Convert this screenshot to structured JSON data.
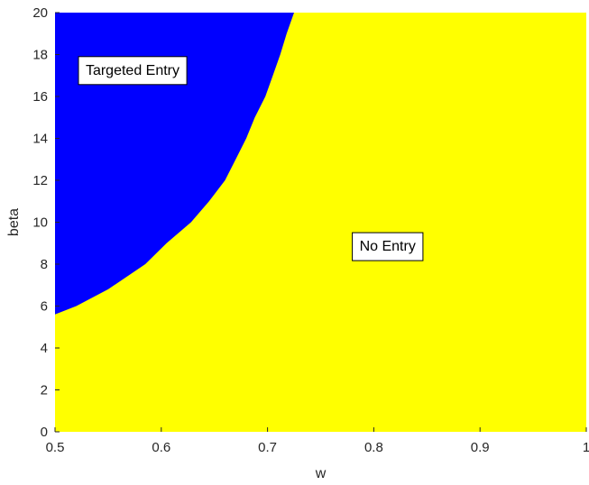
{
  "chart_data": {
    "type": "area",
    "xlabel": "w",
    "ylabel": "beta",
    "xlim": [
      0.5,
      1
    ],
    "ylim": [
      0,
      20
    ],
    "xticks": [
      0.5,
      0.6,
      0.7,
      0.8,
      0.9,
      1
    ],
    "xtick_labels": [
      "0.5",
      "0.6",
      "0.7",
      "0.8",
      "0.9",
      "1"
    ],
    "yticks": [
      0,
      2,
      4,
      6,
      8,
      10,
      12,
      14,
      16,
      18,
      20
    ],
    "ytick_labels": [
      "0",
      "2",
      "4",
      "6",
      "8",
      "10",
      "12",
      "14",
      "16",
      "18",
      "20"
    ],
    "grid": false,
    "background_color": "#ffff00",
    "regions": [
      {
        "name": "Targeted Entry",
        "color": "#0000ff",
        "boundary": [
          [
            0.5,
            5.6
          ],
          [
            0.52,
            6.0
          ],
          [
            0.55,
            6.8
          ],
          [
            0.585,
            8.0
          ],
          [
            0.605,
            9.0
          ],
          [
            0.628,
            10.0
          ],
          [
            0.645,
            11.0
          ],
          [
            0.66,
            12.0
          ],
          [
            0.67,
            13.0
          ],
          [
            0.68,
            14.0
          ],
          [
            0.688,
            15.0
          ],
          [
            0.698,
            16.0
          ],
          [
            0.705,
            17.0
          ],
          [
            0.712,
            18.0
          ],
          [
            0.718,
            19.0
          ],
          [
            0.725,
            20.0
          ]
        ]
      },
      {
        "name": "No Entry",
        "color": "#ffff00"
      }
    ],
    "annotations": [
      {
        "text": "Targeted Entry",
        "x": 0.573,
        "y": 17.3
      },
      {
        "text": "No Entry",
        "x": 0.813,
        "y": 8.9
      }
    ]
  }
}
